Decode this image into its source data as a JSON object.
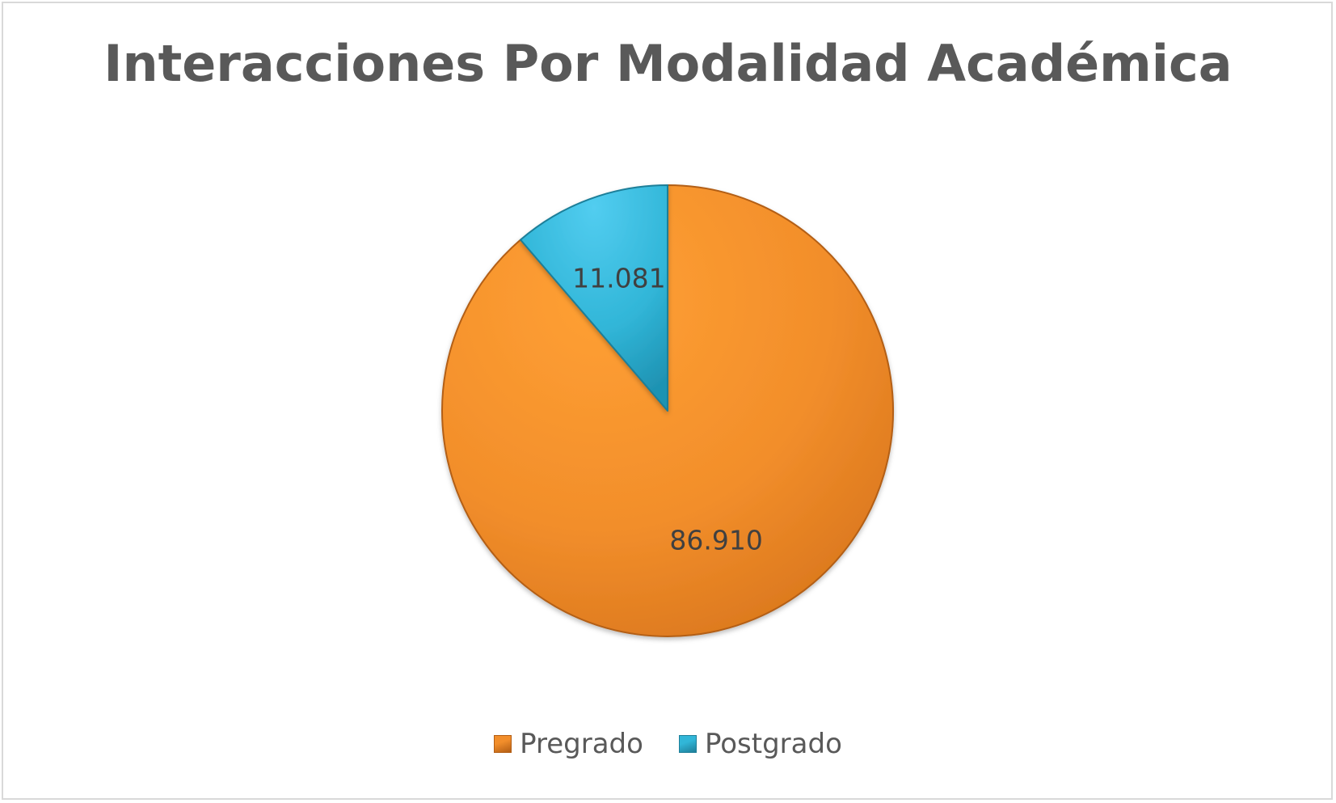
{
  "chart_data": {
    "type": "pie",
    "title": "Interacciones Por Modalidad Académica",
    "categories": [
      "Pregrado",
      "Postgrado"
    ],
    "values": [
      86910,
      11081
    ],
    "value_labels": [
      "86.910",
      "11.081"
    ],
    "colors": [
      "#f28e2b",
      "#31b6d8"
    ],
    "edge_colors": [
      "#b35e14",
      "#1f7f99"
    ],
    "legend_position": "bottom",
    "start_angle": "12 o'clock",
    "direction": "clockwise"
  }
}
